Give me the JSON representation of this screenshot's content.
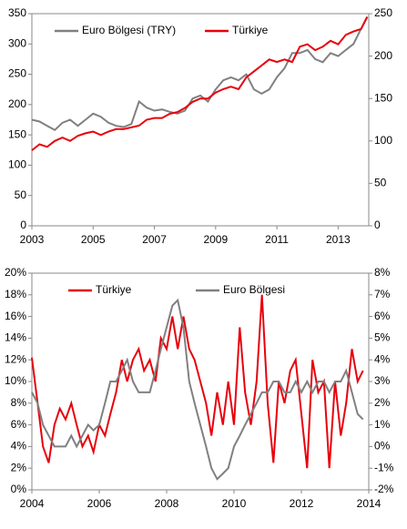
{
  "chart_data": [
    {
      "type": "line",
      "xlim": [
        2003,
        2014
      ],
      "xticks": [
        2003,
        2005,
        2007,
        2009,
        2011,
        2013
      ],
      "ylim": [
        0,
        350
      ],
      "yticks": [
        0,
        50,
        100,
        150,
        200,
        250,
        300,
        350
      ],
      "y2lim": [
        0,
        250
      ],
      "y2ticks": [
        0,
        50,
        100,
        150,
        200,
        250
      ],
      "x": [
        2003.0,
        2003.25,
        2003.5,
        2003.75,
        2004.0,
        2004.25,
        2004.5,
        2004.75,
        2005.0,
        2005.25,
        2005.5,
        2005.75,
        2006.0,
        2006.25,
        2006.5,
        2006.75,
        2007.0,
        2007.25,
        2007.5,
        2007.75,
        2008.0,
        2008.25,
        2008.5,
        2008.75,
        2009.0,
        2009.25,
        2009.5,
        2009.75,
        2010.0,
        2010.25,
        2010.5,
        2010.75,
        2011.0,
        2011.25,
        2011.5,
        2011.75,
        2012.0,
        2012.25,
        2012.5,
        2012.75,
        2013.0,
        2013.25,
        2013.5,
        2013.75,
        2013.95
      ],
      "series": [
        {
          "name": "Euro Bölgesi (TRY)",
          "color": "#808080",
          "values": [
            175,
            172,
            165,
            158,
            170,
            175,
            165,
            175,
            185,
            180,
            170,
            165,
            163,
            168,
            205,
            195,
            190,
            192,
            188,
            185,
            190,
            210,
            215,
            205,
            225,
            240,
            245,
            240,
            250,
            225,
            218,
            225,
            245,
            260,
            285,
            285,
            290,
            275,
            270,
            285,
            280,
            290,
            300,
            325,
            345
          ]
        },
        {
          "name": "Türkiye",
          "color": "#e8000b",
          "axis": "y2",
          "values": [
            89,
            96,
            93,
            100,
            104,
            100,
            106,
            109,
            111,
            107,
            111,
            114,
            114,
            116,
            118,
            125,
            127,
            127,
            132,
            134,
            139,
            146,
            150,
            150,
            157,
            161,
            164,
            161,
            175,
            182,
            189,
            196,
            193,
            196,
            193,
            211,
            214,
            207,
            211,
            218,
            214,
            225,
            229,
            232,
            246
          ]
        }
      ]
    },
    {
      "type": "line",
      "xlim": [
        2004,
        2014
      ],
      "xticks": [
        2004,
        2006,
        2008,
        2010,
        2012,
        2014
      ],
      "ylim": [
        0,
        20
      ],
      "yticks": [
        {
          "value": 0,
          "label": "0%"
        },
        {
          "value": 2,
          "label": "2%"
        },
        {
          "value": 4,
          "label": "4%"
        },
        {
          "value": 6,
          "label": "6%"
        },
        {
          "value": 8,
          "label": "8%"
        },
        {
          "value": 10,
          "label": "10%"
        },
        {
          "value": 12,
          "label": "12%"
        },
        {
          "value": 14,
          "label": "14%"
        },
        {
          "value": 16,
          "label": "16%"
        },
        {
          "value": 18,
          "label": "18%"
        },
        {
          "value": 20,
          "label": "20%"
        }
      ],
      "y2lim": [
        -2,
        8
      ],
      "y2ticks": [
        {
          "value": -2,
          "label": "-2%"
        },
        {
          "value": -1,
          "label": "-1%"
        },
        {
          "value": 0,
          "label": "0%"
        },
        {
          "value": 1,
          "label": "1%"
        },
        {
          "value": 2,
          "label": "2%"
        },
        {
          "value": 3,
          "label": "3%"
        },
        {
          "value": 4,
          "label": "4%"
        },
        {
          "value": 5,
          "label": "5%"
        },
        {
          "value": 6,
          "label": "6%"
        },
        {
          "value": 7,
          "label": "7%"
        },
        {
          "value": 8,
          "label": "8%"
        }
      ],
      "x": [
        2004.0,
        2004.17,
        2004.33,
        2004.5,
        2004.67,
        2004.83,
        2005.0,
        2005.17,
        2005.33,
        2005.5,
        2005.67,
        2005.83,
        2006.0,
        2006.17,
        2006.33,
        2006.5,
        2006.67,
        2006.83,
        2007.0,
        2007.17,
        2007.33,
        2007.5,
        2007.67,
        2007.83,
        2008.0,
        2008.17,
        2008.33,
        2008.5,
        2008.67,
        2008.83,
        2009.0,
        2009.17,
        2009.33,
        2009.5,
        2009.67,
        2009.83,
        2010.0,
        2010.17,
        2010.33,
        2010.5,
        2010.67,
        2010.83,
        2011.0,
        2011.17,
        2011.33,
        2011.5,
        2011.67,
        2011.83,
        2012.0,
        2012.17,
        2012.33,
        2012.5,
        2012.67,
        2012.83,
        2013.0,
        2013.17,
        2013.33,
        2013.5,
        2013.67,
        2013.83
      ],
      "series": [
        {
          "name": "Türkiye",
          "color": "#e8000b",
          "values": [
            12.2,
            8,
            4,
            2.5,
            6,
            7.5,
            6.5,
            8,
            6,
            4,
            5,
            3.5,
            6,
            5,
            7,
            9,
            12,
            10,
            12,
            13,
            11,
            12,
            10,
            14,
            13,
            16,
            13,
            16,
            13,
            12,
            10,
            8,
            5,
            9,
            6,
            10,
            6,
            15,
            9,
            6,
            10,
            18,
            8,
            2.5,
            10,
            8,
            11,
            12,
            7,
            2,
            12,
            9,
            10,
            2,
            10,
            5,
            8,
            13,
            10,
            11
          ]
        },
        {
          "name": "Euro Bölgesi",
          "color": "#808080",
          "axis": "y2",
          "values": [
            2.5,
            2,
            1,
            0.5,
            0,
            0,
            0,
            0.5,
            0,
            0.5,
            1,
            0.75,
            1,
            2,
            3,
            3,
            3.5,
            4,
            3,
            2.5,
            2.5,
            2.5,
            3.5,
            4.5,
            5.5,
            6.5,
            6.75,
            5.5,
            3,
            2,
            1,
            0,
            -1,
            -1.5,
            -1.25,
            -1,
            0,
            0.5,
            1,
            1.5,
            2,
            2.5,
            2.5,
            3,
            3,
            2.5,
            2.5,
            3,
            2.5,
            3,
            2.5,
            3,
            3,
            2.5,
            3,
            3,
            3.5,
            2.5,
            1.5,
            1.25
          ]
        }
      ]
    }
  ]
}
